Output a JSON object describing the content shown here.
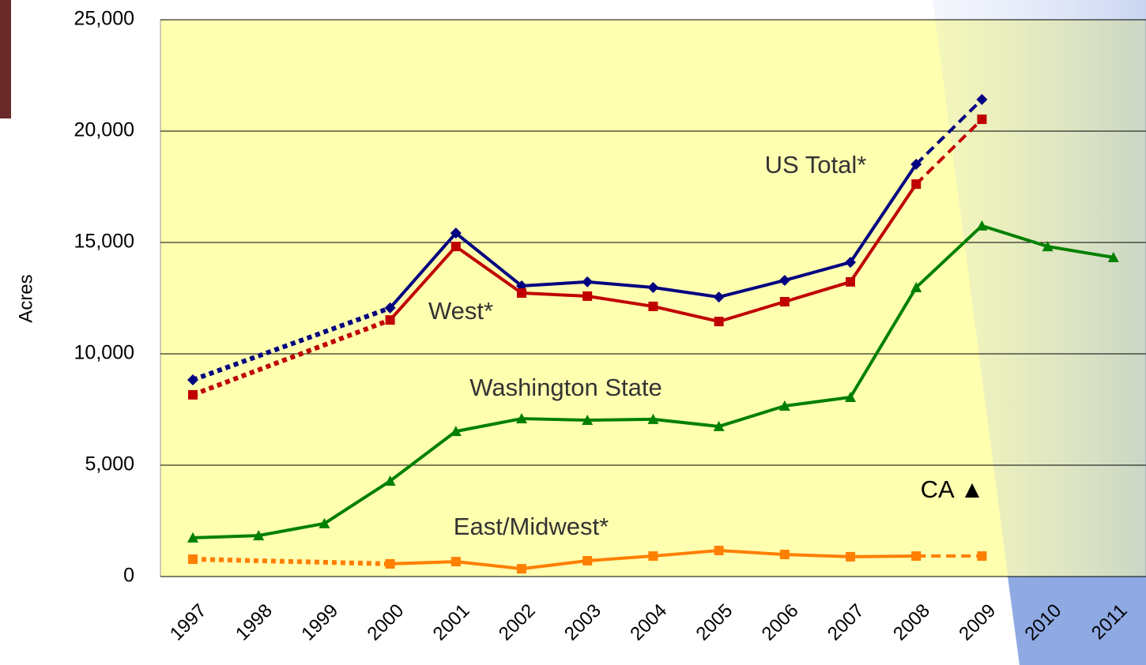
{
  "chart_data": {
    "type": "line",
    "y_label": "Acres",
    "categories": [
      "1997",
      "1998",
      "1999",
      "2000",
      "2001",
      "2002",
      "2003",
      "2004",
      "2005",
      "2006",
      "2007",
      "2008",
      "2009",
      "2010",
      "2011"
    ],
    "ylim": [
      0,
      25000
    ],
    "yticks": [
      {
        "value": 0,
        "label": "0"
      },
      {
        "value": 5000,
        "label": "5,000"
      },
      {
        "value": 10000,
        "label": "10,000"
      },
      {
        "value": 15000,
        "label": "15,000"
      },
      {
        "value": 20000,
        "label": "20,000"
      },
      {
        "value": 25000,
        "label": "25,000"
      }
    ],
    "grid": true,
    "series": [
      {
        "name": "US Total*",
        "color": "#000080",
        "marker": "diamond",
        "dashed_last_segment": true,
        "values": [
          8830,
          null,
          null,
          12060,
          15420,
          13050,
          13230,
          12980,
          12550,
          13300,
          14110,
          18510,
          21420,
          null,
          null
        ]
      },
      {
        "name": "West*",
        "color": "#c00000",
        "marker": "square",
        "dashed_last_segment": true,
        "values": [
          8160,
          null,
          null,
          11520,
          14820,
          12730,
          12590,
          12130,
          11450,
          12340,
          13230,
          17620,
          20530,
          null,
          null
        ]
      },
      {
        "name": "Washington State",
        "color": "#008000",
        "marker": "triangle",
        "dashed_last_segment": false,
        "values": [
          1740,
          1840,
          2380,
          4290,
          6520,
          7090,
          7020,
          7060,
          6740,
          7660,
          8050,
          12980,
          15750,
          14820,
          14330
        ]
      },
      {
        "name": "East/Midwest*",
        "color": "#ff7f00",
        "marker": "square",
        "dashed_last_segment": true,
        "values": [
          780,
          null,
          null,
          570,
          670,
          350,
          710,
          920,
          1170,
          990,
          890,
          920,
          920,
          null,
          null
        ]
      }
    ],
    "annotations": [
      "CA ▲"
    ]
  }
}
